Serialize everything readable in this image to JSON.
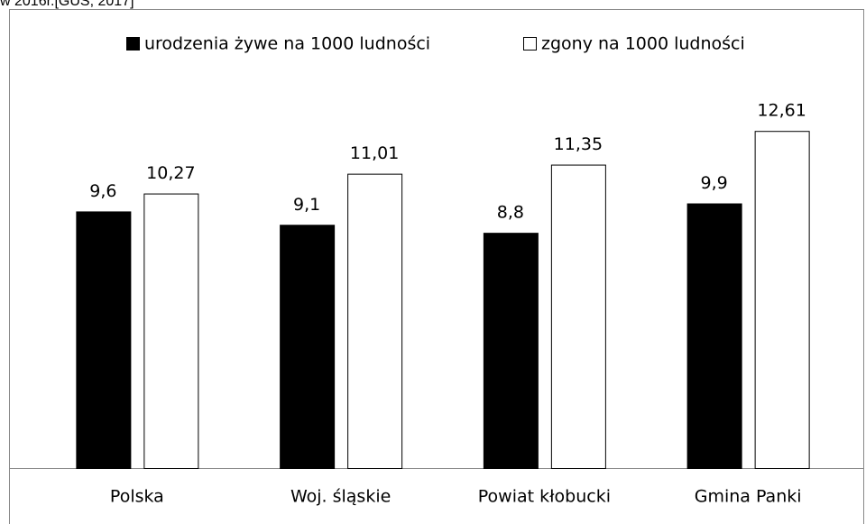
{
  "chart_data": {
    "type": "bar",
    "caption": "w 2016r.[GUS, 2017]",
    "categories": [
      "Polska",
      "Woj. śląskie",
      "Powiat kłobucki",
      "Gmina Panki"
    ],
    "series": [
      {
        "name": "urodzenia żywe na 1000 ludności",
        "color": "#000000",
        "values": [
          9.6,
          9.1,
          8.8,
          9.9
        ],
        "value_labels": [
          "9,6",
          "9,1",
          "8,8",
          "9,9"
        ]
      },
      {
        "name": "zgony na 1000 ludności",
        "color": "#ffffff",
        "values": [
          10.27,
          11.01,
          11.35,
          12.61
        ],
        "value_labels": [
          "10,27",
          "11,01",
          "11,35",
          "12,61"
        ]
      }
    ],
    "ylim": [
      0,
      14
    ],
    "legend": "top"
  }
}
